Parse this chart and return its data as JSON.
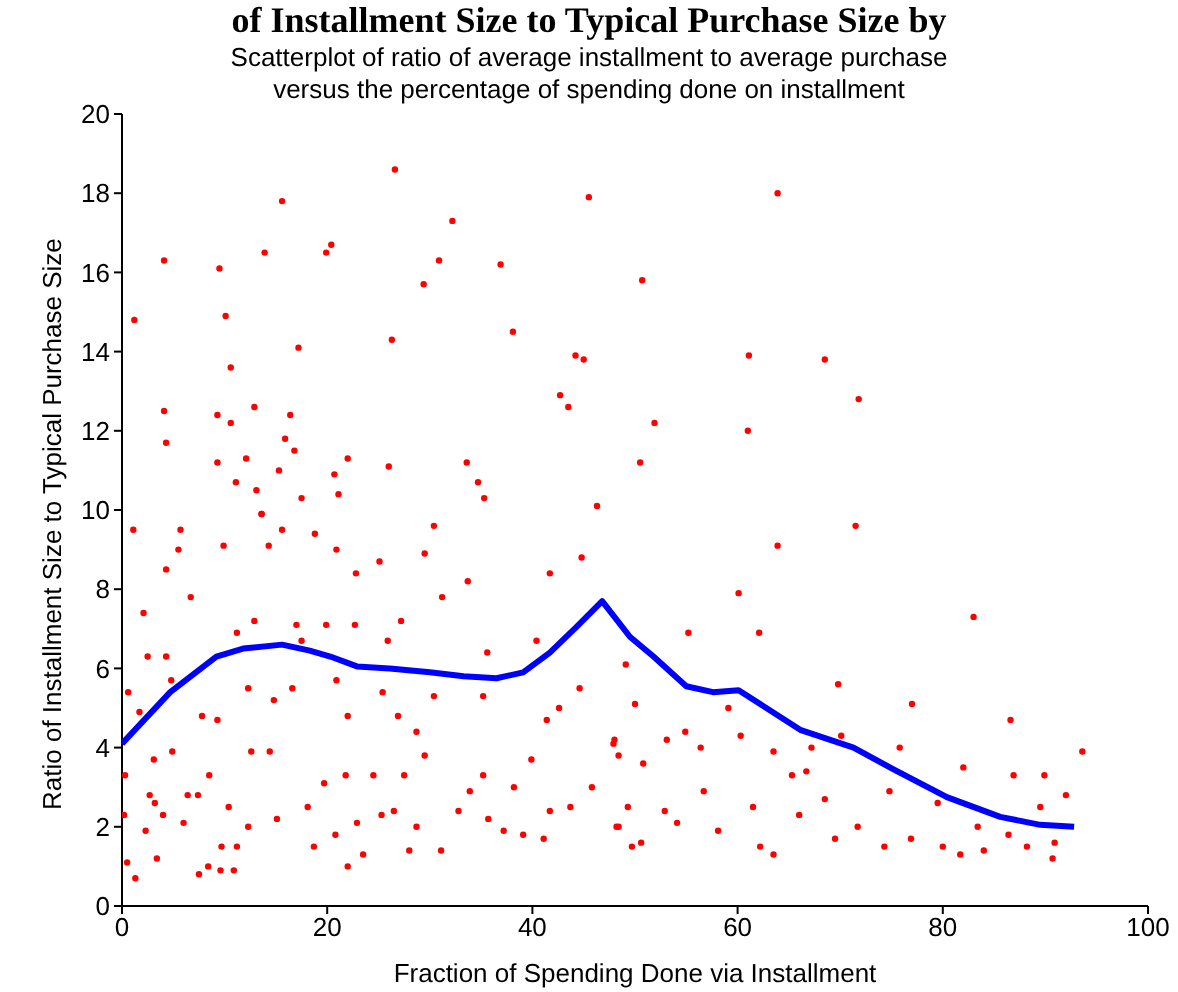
{
  "chart_data": {
    "type": "scatter",
    "title": "of Installment Size to Typical Purchase Size by",
    "subtitle": "Scatterplot of ratio of average installment to average purchase\nversus the percentage of spending done on installment",
    "xlabel": "Fraction of Spending Done via Installment",
    "ylabel": "Ratio of Installment Size to Typical Purchase Size",
    "xlim": [
      0,
      100
    ],
    "xticks": [
      0,
      20,
      40,
      60,
      80,
      100
    ],
    "ylim": [
      0,
      20
    ],
    "yticks": [
      0,
      2,
      4,
      6,
      8,
      10,
      12,
      14,
      16,
      18,
      20
    ],
    "grid": false,
    "legend": false,
    "series": [
      {
        "color": "#ff0000",
        "marker": "circle",
        "x": [
          1.2,
          4.1,
          4.3,
          4.1,
          9.5,
          10.1,
          10.6,
          9.3,
          10.6,
          9.3,
          12.1,
          11.1,
          13.1,
          13.6,
          12.9,
          13.9,
          15.6,
          17.2,
          16.4,
          15.9,
          16.8,
          15.3,
          17.5,
          19.9,
          20.4,
          22.0,
          20.7,
          21.1,
          26.0,
          26.3,
          26.6,
          29.4,
          30.9,
          32.2,
          33.6,
          34.7,
          35.3,
          36.9,
          38.1,
          42.7,
          44.2,
          45.0,
          43.5,
          45.5,
          46.3,
          50.7,
          50.5,
          63.9,
          61.1,
          68.5,
          71.8,
          51.9,
          61.0,
          1.1,
          5.7,
          13.6,
          2.1,
          4.3,
          5.5,
          6.7,
          9.9,
          14.3,
          15.6,
          18.8,
          20.9,
          22.8,
          25.1,
          29.5,
          30.4,
          33.7,
          31.2,
          41.7,
          44.8,
          2.5,
          4.3,
          0.6,
          1.7,
          4.8,
          7.8,
          9.3,
          11.2,
          12.9,
          12.3,
          14.8,
          17.0,
          16.6,
          17.5,
          19.9,
          22.7,
          20.9,
          22.0,
          25.9,
          27.2,
          25.4,
          26.9,
          28.7,
          30.4,
          35.6,
          35.2,
          40.4,
          41.4,
          42.6,
          44.6,
          0.3,
          0.2,
          0.5,
          1.3,
          2.3,
          3.2,
          3.4,
          4.0,
          4.9,
          6.4,
          7.5,
          8.4,
          9.6,
          10.9,
          9.7,
          8.5,
          10.4,
          12.3,
          11.2,
          12.6,
          14.4,
          15.1,
          18.1,
          18.7,
          19.7,
          20.8,
          22.0,
          23.5,
          22.9,
          21.8,
          24.5,
          25.3,
          26.5,
          27.5,
          28.0,
          28.7,
          29.5,
          31.1,
          32.8,
          33.9,
          35.2,
          35.7,
          37.2,
          38.2,
          39.1,
          39.9,
          41.1,
          41.7,
          43.7,
          45.8,
          48.2,
          49.7,
          48.0,
          50.8,
          2.7,
          6.0,
          7.4,
          3.1,
          71.5,
          63.9,
          60.1,
          55.2,
          62.1,
          83.0,
          49.1,
          69.8,
          77.0,
          86.6,
          93.6,
          50.0,
          59.1,
          47.9,
          53.1,
          54.9,
          56.4,
          60.3,
          63.5,
          67.2,
          70.1,
          75.8,
          82.0,
          86.9,
          89.9,
          92.0,
          48.4,
          49.3,
          48.4,
          50.6,
          52.9,
          54.1,
          56.7,
          58.1,
          61.5,
          62.2,
          63.5,
          65.3,
          66.0,
          66.7,
          68.5,
          69.5,
          71.7,
          74.3,
          74.8,
          76.9,
          79.5,
          80.0,
          81.7,
          83.4,
          84.0,
          86.4,
          88.2,
          89.5,
          90.7,
          90.9
        ],
        "values": [
          14.8,
          16.3,
          11.7,
          12.5,
          16.1,
          14.9,
          13.6,
          12.4,
          12.2,
          11.2,
          11.3,
          10.7,
          10.5,
          9.9,
          12.6,
          16.5,
          17.8,
          14.1,
          12.4,
          11.8,
          11.5,
          11.0,
          10.3,
          16.5,
          16.7,
          11.3,
          10.9,
          10.4,
          11.1,
          14.3,
          18.6,
          15.7,
          16.3,
          17.3,
          11.2,
          10.7,
          10.3,
          16.2,
          14.5,
          12.9,
          13.9,
          13.8,
          12.6,
          17.9,
          10.1,
          15.8,
          11.2,
          18.0,
          13.9,
          13.8,
          12.8,
          12.2,
          12.0,
          9.5,
          9.5,
          9.9,
          7.4,
          8.5,
          9.0,
          7.8,
          9.1,
          9.1,
          9.5,
          9.4,
          9.0,
          8.4,
          8.7,
          8.9,
          9.6,
          8.2,
          7.8,
          8.4,
          8.8,
          6.3,
          6.3,
          5.4,
          4.9,
          5.7,
          4.8,
          4.7,
          6.9,
          7.2,
          5.5,
          5.2,
          7.1,
          5.5,
          6.7,
          7.1,
          7.1,
          5.7,
          4.8,
          6.7,
          7.2,
          5.4,
          4.8,
          4.4,
          5.3,
          6.4,
          5.3,
          6.7,
          4.7,
          5.0,
          5.5,
          3.3,
          2.3,
          1.1,
          0.7,
          1.9,
          2.6,
          1.2,
          2.3,
          3.9,
          2.8,
          0.8,
          1.0,
          0.9,
          0.9,
          1.5,
          3.3,
          2.5,
          2.0,
          1.5,
          3.9,
          3.9,
          2.2,
          2.5,
          1.5,
          3.1,
          1.8,
          1.0,
          1.3,
          2.1,
          3.3,
          3.3,
          2.3,
          2.4,
          3.3,
          1.4,
          2.0,
          3.8,
          1.4,
          2.4,
          2.9,
          3.3,
          2.2,
          1.9,
          3.0,
          1.8,
          3.7,
          1.7,
          2.4,
          2.5,
          3.0,
          2.0,
          1.5,
          4.2,
          3.6,
          2.8,
          2.1,
          2.8,
          3.7,
          9.6,
          9.1,
          7.9,
          6.9,
          6.9,
          7.3,
          6.1,
          5.6,
          5.1,
          4.7,
          3.9,
          5.1,
          5.0,
          4.1,
          4.2,
          4.4,
          4.0,
          4.3,
          3.9,
          4.0,
          4.3,
          4.0,
          3.5,
          3.3,
          3.3,
          2.8,
          3.8,
          2.5,
          2.0,
          1.6,
          2.4,
          2.1,
          2.9,
          1.9,
          2.5,
          1.5,
          1.3,
          3.3,
          2.3,
          3.4,
          2.7,
          1.7,
          2.0,
          1.5,
          2.9,
          1.7,
          2.6,
          1.5,
          1.3,
          2.0,
          1.4,
          1.8,
          1.5,
          2.5,
          1.2,
          1.6
        ]
      },
      {
        "type": "line",
        "color": "#0000ff",
        "marker": "none",
        "line_style": "solid",
        "x": [
          0,
          4.7,
          9.2,
          11.8,
          15.6,
          18.3,
          20.3,
          22.9,
          26.1,
          30.0,
          33.3,
          36.5,
          39.1,
          41.7,
          44.3,
          46.8,
          49.5,
          51.8,
          55.0,
          57.6,
          60.1,
          62.2,
          66.1,
          71.3,
          75.2,
          80.4,
          85.6,
          89.5,
          92.8
        ],
        "values": [
          4.1,
          5.4,
          6.3,
          6.5,
          6.6,
          6.45,
          6.3,
          6.05,
          6.0,
          5.9,
          5.8,
          5.75,
          5.9,
          6.4,
          7.05,
          7.7,
          6.8,
          6.3,
          5.55,
          5.4,
          5.45,
          5.1,
          4.45,
          4.0,
          3.45,
          2.75,
          2.25,
          2.05,
          2.0
        ]
      }
    ]
  }
}
